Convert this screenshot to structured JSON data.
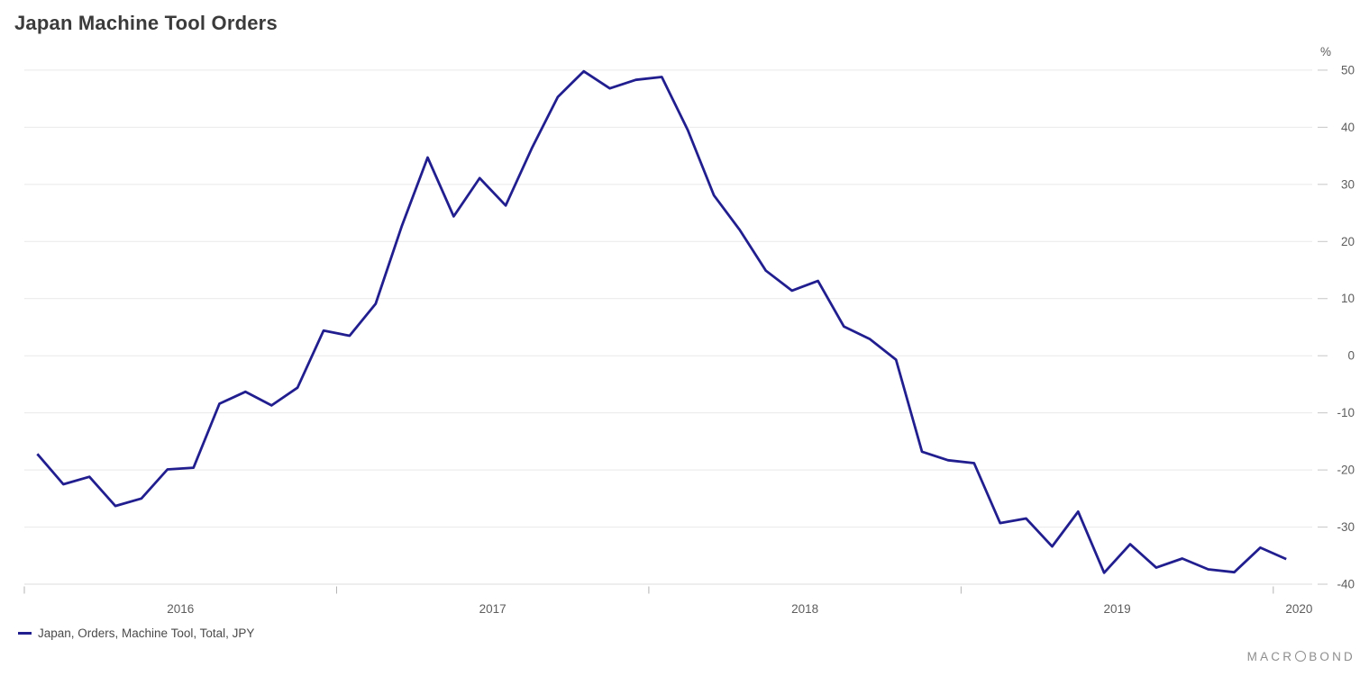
{
  "page": {
    "title": "Japan Machine Tool Orders"
  },
  "branding": {
    "logo_prefix": "MACR",
    "logo_suffix": "BOND"
  },
  "chart_data": {
    "type": "line",
    "title": "Japan Machine Tool Orders",
    "unit_label": "%",
    "xlabel": "",
    "ylabel": "%",
    "ylim": [
      -41.8,
      51.5
    ],
    "grid": "horizontal",
    "legend_position": "bottom-left",
    "y_ticks": [
      50,
      40,
      30,
      20,
      10,
      0,
      -10,
      -20,
      -30,
      -40
    ],
    "x_ticks_years": [
      "2016",
      "2017",
      "2018",
      "2019",
      "2020"
    ],
    "legend": [
      {
        "label": "Japan, Orders, Machine Tool, Total, JPY",
        "color": "#211e8f"
      }
    ],
    "x": [
      "2016-01",
      "2016-02",
      "2016-03",
      "2016-04",
      "2016-05",
      "2016-06",
      "2016-07",
      "2016-08",
      "2016-09",
      "2016-10",
      "2016-11",
      "2016-12",
      "2017-01",
      "2017-02",
      "2017-03",
      "2017-04",
      "2017-05",
      "2017-06",
      "2017-07",
      "2017-08",
      "2017-09",
      "2017-10",
      "2017-11",
      "2017-12",
      "2018-01",
      "2018-02",
      "2018-03",
      "2018-04",
      "2018-05",
      "2018-06",
      "2018-07",
      "2018-08",
      "2018-09",
      "2018-10",
      "2018-11",
      "2018-12",
      "2019-01",
      "2019-02",
      "2019-03",
      "2019-04",
      "2019-05",
      "2019-06",
      "2019-07",
      "2019-08",
      "2019-09",
      "2019-10",
      "2019-11",
      "2019-12",
      "2020-01"
    ],
    "series": [
      {
        "name": "Japan, Orders, Machine Tool, Total, JPY",
        "color": "#211e8f",
        "values": [
          -17.2,
          -22.5,
          -21.2,
          -26.3,
          -25.0,
          -19.9,
          -19.6,
          -8.4,
          -6.3,
          -8.7,
          -5.6,
          4.4,
          3.5,
          9.1,
          22.6,
          34.7,
          24.4,
          31.1,
          26.3,
          36.3,
          45.3,
          49.8,
          46.8,
          48.3,
          48.8,
          39.5,
          28.1,
          22.0,
          14.9,
          11.4,
          13.1,
          5.1,
          2.9,
          -0.7,
          -16.8,
          -18.3,
          -18.8,
          -29.3,
          -28.5,
          -33.4,
          -27.3,
          -38.0,
          -33.0,
          -37.1,
          -35.5,
          -37.4,
          -37.9,
          -33.6,
          -35.6
        ]
      }
    ]
  }
}
